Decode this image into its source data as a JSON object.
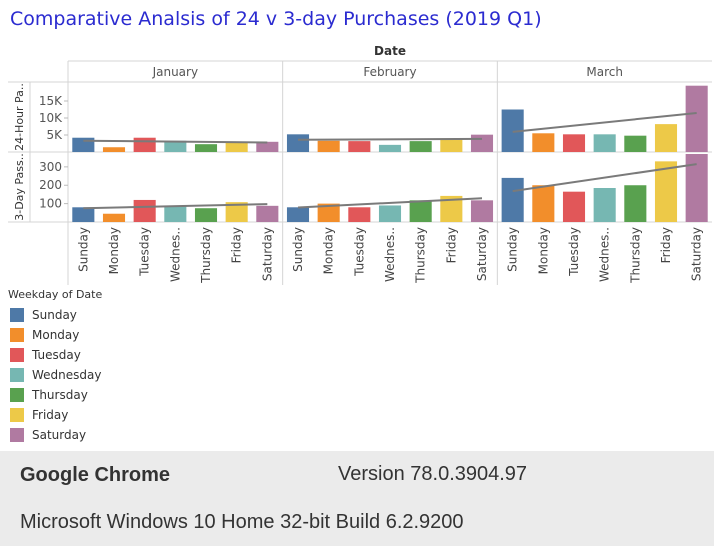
{
  "title": "Comparative Analsis of 24 v 3-day Purchases (2019 Q1)",
  "colors": {
    "Sunday": "#4e79a7",
    "Monday": "#f28e2b",
    "Tuesday": "#e15759",
    "Wednesday": "#76b7b2",
    "Thursday": "#59a14f",
    "Friday": "#edc948",
    "Saturday": "#b07aa1",
    "trend": "#7a7a7a",
    "trend_dark": "#555555"
  },
  "chart_data": {
    "type": "bar",
    "header_title": "Date",
    "months": [
      "January",
      "February",
      "March"
    ],
    "weekdays": [
      "Sunday",
      "Monday",
      "Tuesday",
      "Wednesday",
      "Thursday",
      "Friday",
      "Saturday"
    ],
    "weekday_tick_labels": [
      "Sunday",
      "Monday",
      "Tuesday",
      "Wednes..",
      "Thursday",
      "Friday",
      "Saturday"
    ],
    "trend_lines": true,
    "grid": false,
    "legend_placement": "bottom-left",
    "rows": [
      {
        "label": "24-Hour Pa..",
        "ylim": [
          0,
          20000
        ],
        "ticks": [
          5000,
          10000,
          15000
        ],
        "tick_labels": [
          "5K",
          "10K",
          "15K"
        ],
        "values": {
          "January": [
            4200,
            1400,
            4200,
            3300,
            2300,
            3000,
            3000
          ],
          "February": [
            5200,
            3300,
            3200,
            2100,
            3200,
            4000,
            5100
          ],
          "March": [
            12500,
            5500,
            5200,
            5200,
            4800,
            8200,
            19500
          ]
        }
      },
      {
        "label": "3-Day Pass..",
        "ylim": [
          0,
          370
        ],
        "ticks": [
          100,
          200,
          300
        ],
        "tick_labels": [
          "100",
          "200",
          "300"
        ],
        "values": {
          "January": [
            80,
            45,
            120,
            88,
            75,
            108,
            88
          ],
          "February": [
            80,
            100,
            80,
            90,
            118,
            142,
            118
          ],
          "March": [
            240,
            200,
            165,
            185,
            200,
            330,
            370
          ]
        }
      }
    ]
  },
  "legend": {
    "title": "Weekday of Date",
    "items": [
      "Sunday",
      "Monday",
      "Tuesday",
      "Wednesday",
      "Thursday",
      "Friday",
      "Saturday"
    ]
  },
  "footer": {
    "browser": "Google Chrome",
    "version": "Version 78.0.3904.97",
    "os": "Microsoft Windows 10 Home 32-bit Build 6.2.9200"
  }
}
